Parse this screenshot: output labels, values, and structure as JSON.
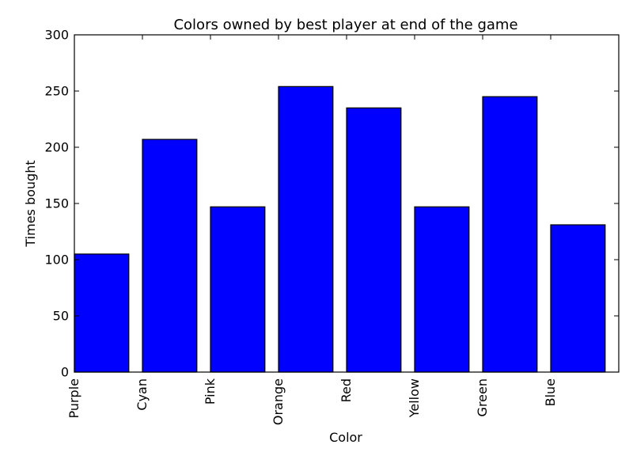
{
  "chart_data": {
    "type": "bar",
    "title": "Colors owned by best player at end of the game",
    "xlabel": "Color",
    "ylabel": "Times bought",
    "categories": [
      "Purple",
      "Cyan",
      "Pink",
      "Orange",
      "Red",
      "Yellow",
      "Green",
      "Blue"
    ],
    "values": [
      105,
      207,
      147,
      254,
      235,
      147,
      245,
      131
    ],
    "ylim": [
      0,
      300
    ],
    "yticks": [
      0,
      50,
      100,
      150,
      200,
      250,
      300
    ],
    "bar_color": "#0000ff",
    "grid": false,
    "legend": "none"
  }
}
